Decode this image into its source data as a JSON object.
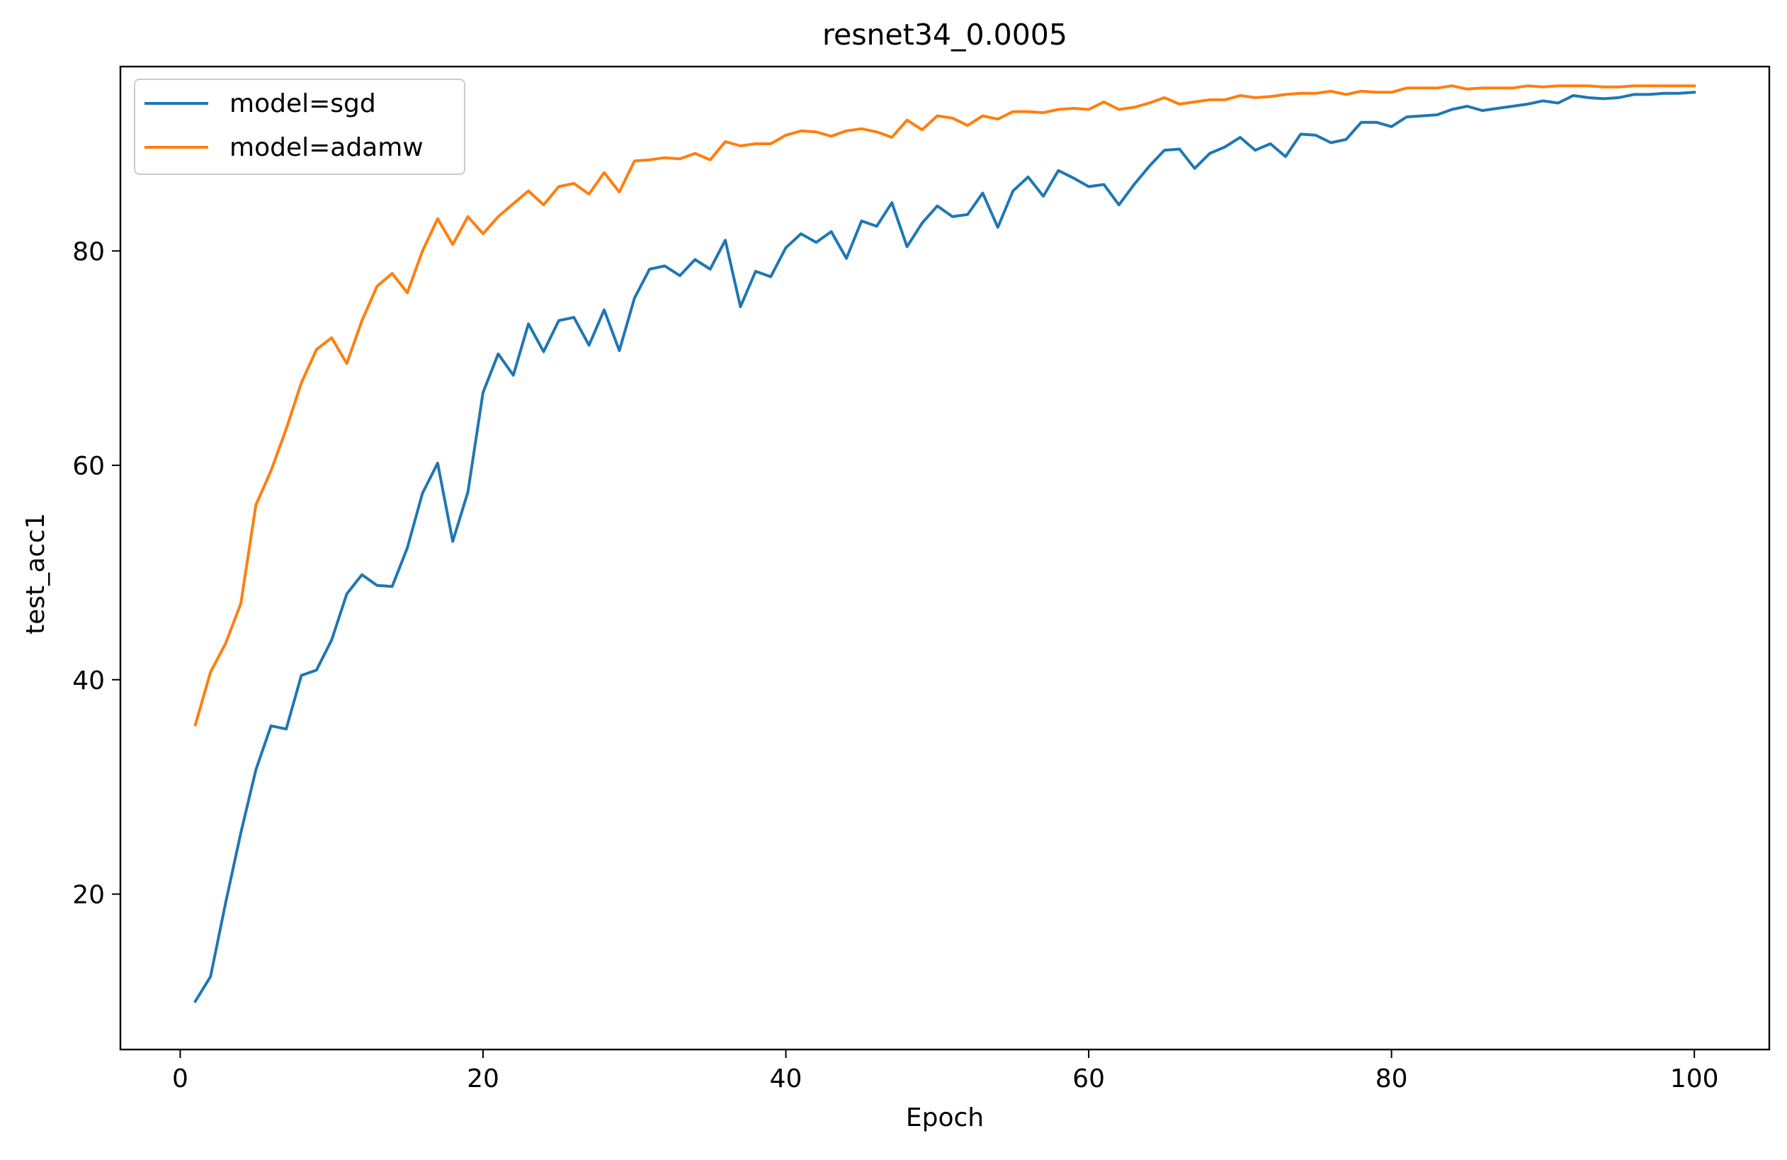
{
  "chart_data": {
    "type": "line",
    "title": "resnet34_0.0005",
    "xlabel": "Epoch",
    "ylabel": "test_acc1",
    "xlim": [
      -3.95,
      104.95
    ],
    "ylim": [
      5.5,
      97.2
    ],
    "xticks": [
      0,
      20,
      40,
      60,
      80,
      100
    ],
    "yticks": [
      20,
      40,
      60,
      80
    ],
    "xtick_labels": [
      "0",
      "20",
      "40",
      "60",
      "80",
      "100"
    ],
    "ytick_labels": [
      "20",
      "40",
      "60",
      "80"
    ],
    "grid": false,
    "legend_position": "upper-left",
    "x": [
      1,
      2,
      3,
      4,
      5,
      6,
      7,
      8,
      9,
      10,
      11,
      12,
      13,
      14,
      15,
      16,
      17,
      18,
      19,
      20,
      21,
      22,
      23,
      24,
      25,
      26,
      27,
      28,
      29,
      30,
      31,
      32,
      33,
      34,
      35,
      36,
      37,
      38,
      39,
      40,
      41,
      42,
      43,
      44,
      45,
      46,
      47,
      48,
      49,
      50,
      51,
      52,
      53,
      54,
      55,
      56,
      57,
      58,
      59,
      60,
      61,
      62,
      63,
      64,
      65,
      66,
      67,
      68,
      69,
      70,
      71,
      72,
      73,
      74,
      75,
      76,
      77,
      78,
      79,
      80,
      81,
      82,
      83,
      84,
      85,
      86,
      87,
      88,
      89,
      90,
      91,
      92,
      93,
      94,
      95,
      96,
      97,
      98,
      99,
      100
    ],
    "series": [
      {
        "name": "model=sgd",
        "color": "#1f77b4",
        "values": [
          10.0,
          12.3,
          19.2,
          25.7,
          31.6,
          35.7,
          35.4,
          40.4,
          40.9,
          43.7,
          48.0,
          49.8,
          48.8,
          48.7,
          52.3,
          57.4,
          60.2,
          52.9,
          57.5,
          66.8,
          70.4,
          68.4,
          73.2,
          70.6,
          73.5,
          73.8,
          71.2,
          74.5,
          70.7,
          75.6,
          78.3,
          78.6,
          77.7,
          79.2,
          78.3,
          81.0,
          74.8,
          78.1,
          77.6,
          80.3,
          81.6,
          80.8,
          81.8,
          79.3,
          82.8,
          82.3,
          84.5,
          80.4,
          82.6,
          84.2,
          83.2,
          83.4,
          85.4,
          82.2,
          85.6,
          86.9,
          85.1,
          87.5,
          86.8,
          86.0,
          86.2,
          84.3,
          86.2,
          87.9,
          89.4,
          89.5,
          87.7,
          89.1,
          89.7,
          90.6,
          89.4,
          90.0,
          88.8,
          90.9,
          90.8,
          90.1,
          90.4,
          92.0,
          92.0,
          91.6,
          92.5,
          92.6,
          92.7,
          93.2,
          93.5,
          93.1,
          93.3,
          93.5,
          93.7,
          94.0,
          93.8,
          94.5,
          94.3,
          94.2,
          94.3,
          94.6,
          94.6,
          94.7,
          94.7,
          94.8
        ]
      },
      {
        "name": "model=adamw",
        "color": "#ff7f0e",
        "values": [
          35.8,
          40.7,
          43.4,
          47.1,
          56.3,
          59.5,
          63.4,
          67.7,
          70.8,
          71.9,
          69.5,
          73.5,
          76.7,
          77.9,
          76.1,
          80.0,
          83.0,
          80.6,
          83.2,
          81.6,
          83.2,
          84.4,
          85.6,
          84.3,
          86.0,
          86.3,
          85.3,
          87.3,
          85.5,
          88.4,
          88.5,
          88.7,
          88.6,
          89.1,
          88.5,
          90.2,
          89.8,
          90.0,
          90.0,
          90.8,
          91.2,
          91.1,
          90.7,
          91.2,
          91.4,
          91.1,
          90.6,
          92.2,
          91.3,
          92.6,
          92.4,
          91.7,
          92.6,
          92.3,
          93.0,
          93.0,
          92.9,
          93.2,
          93.3,
          93.2,
          93.9,
          93.2,
          93.4,
          93.8,
          94.3,
          93.7,
          93.9,
          94.1,
          94.1,
          94.5,
          94.3,
          94.4,
          94.6,
          94.7,
          94.7,
          94.9,
          94.6,
          94.9,
          94.8,
          94.8,
          95.2,
          95.2,
          95.2,
          95.4,
          95.1,
          95.2,
          95.2,
          95.2,
          95.4,
          95.3,
          95.4,
          95.4,
          95.4,
          95.3,
          95.3,
          95.4,
          95.4,
          95.4,
          95.4,
          95.4
        ]
      }
    ]
  }
}
